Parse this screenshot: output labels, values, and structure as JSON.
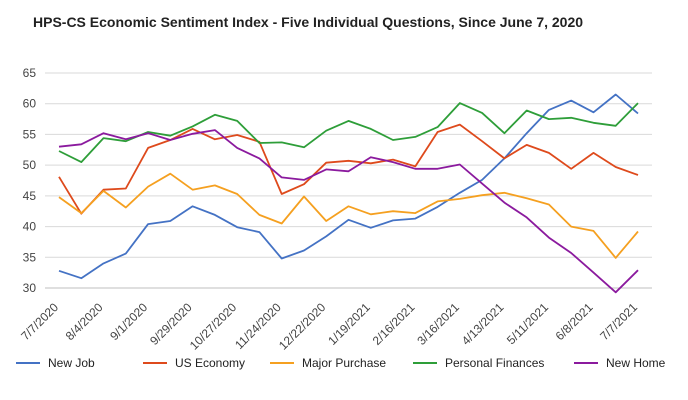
{
  "chart_data": {
    "type": "line",
    "title": "HPS-CS Economic Sentiment Index - Five Individual Questions, Since June 7, 2020",
    "xlabel": "",
    "ylabel": "",
    "ylim": [
      30,
      65
    ],
    "yticks": [
      30,
      35,
      40,
      45,
      50,
      55,
      60,
      65
    ],
    "grid": true,
    "legend_position": "bottom",
    "x": [
      "7/7/2020",
      "7/21/2020",
      "8/4/2020",
      "8/18/2020",
      "9/1/2020",
      "9/15/2020",
      "9/29/2020",
      "10/13/2020",
      "10/27/2020",
      "11/10/2020",
      "11/24/2020",
      "12/8/2020",
      "12/22/2020",
      "1/5/2021",
      "1/19/2021",
      "2/2/2021",
      "2/16/2021",
      "3/2/2021",
      "3/16/2021",
      "3/30/2021",
      "4/13/2021",
      "4/27/2021",
      "5/11/2021",
      "5/25/2021",
      "6/8/2021",
      "6/22/2021",
      "7/7/2021"
    ],
    "x_tick_labels": [
      "7/7/2020",
      "8/4/2020",
      "9/1/2020",
      "9/29/2020",
      "10/27/2020",
      "11/24/2020",
      "12/22/2020",
      "1/19/2021",
      "2/16/2021",
      "3/16/2021",
      "4/13/2021",
      "5/11/2021",
      "6/8/2021",
      "7/7/2021"
    ],
    "series": [
      {
        "name": "New Job",
        "color": "#4472C4",
        "values": [
          32.8,
          31.6,
          34.0,
          35.6,
          40.4,
          40.9,
          43.3,
          41.9,
          39.9,
          39.1,
          34.8,
          36.1,
          38.4,
          41.1,
          39.8,
          41.0,
          41.3,
          43.2,
          45.5,
          47.6,
          51.1,
          55.2,
          59.0,
          60.5,
          58.6,
          61.5,
          58.4
        ]
      },
      {
        "name": "US Economy",
        "color": "#DE4A1C",
        "values": [
          48.1,
          42.1,
          46.0,
          46.2,
          52.8,
          54.1,
          55.9,
          54.2,
          54.9,
          53.8,
          45.3,
          46.9,
          50.4,
          50.7,
          50.3,
          50.9,
          49.8,
          55.4,
          56.6,
          53.9,
          51.1,
          53.3,
          52.0,
          49.4,
          52.0,
          49.7,
          48.4
        ]
      },
      {
        "name": "Major Purchase",
        "color": "#F5A020",
        "values": [
          44.8,
          42.2,
          45.8,
          43.1,
          46.5,
          48.6,
          46.0,
          46.7,
          45.3,
          41.9,
          40.5,
          44.9,
          40.9,
          43.3,
          42.0,
          42.5,
          42.2,
          44.1,
          44.5,
          45.1,
          45.5,
          44.6,
          43.6,
          40.0,
          39.3,
          34.9,
          39.2
        ]
      },
      {
        "name": "Personal Finances",
        "color": "#2E9E39",
        "values": [
          52.3,
          50.5,
          54.4,
          53.9,
          55.4,
          54.8,
          56.3,
          58.2,
          57.2,
          53.6,
          53.7,
          52.9,
          55.6,
          57.2,
          55.9,
          54.1,
          54.6,
          56.2,
          60.1,
          58.5,
          55.2,
          58.9,
          57.5,
          57.7,
          56.9,
          56.4,
          60.1
        ]
      },
      {
        "name": "New Home",
        "color": "#8B1A9E",
        "values": [
          53.0,
          53.4,
          55.2,
          54.2,
          55.2,
          54.1,
          55.1,
          55.7,
          52.8,
          51.1,
          48.0,
          47.6,
          49.3,
          49.0,
          51.3,
          50.5,
          49.4,
          49.4,
          50.1,
          47.0,
          43.9,
          41.5,
          38.2,
          35.7,
          32.5,
          29.3,
          32.9
        ]
      }
    ]
  }
}
